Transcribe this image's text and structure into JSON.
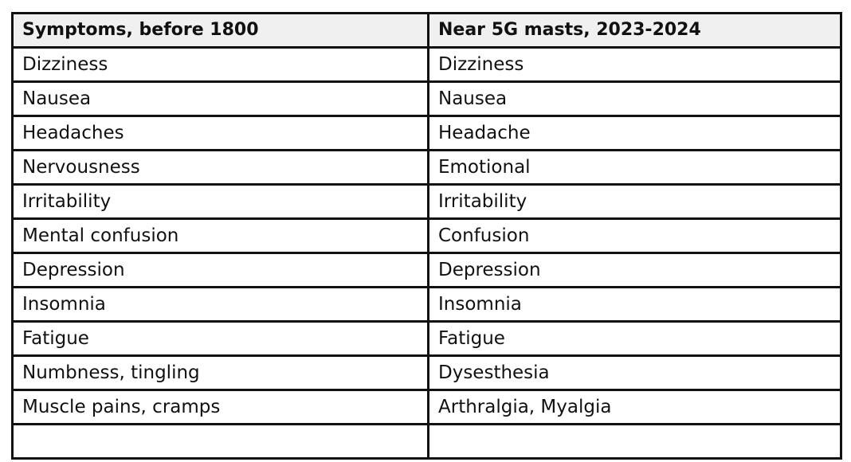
{
  "table": {
    "headers": [
      "Symptoms, before 1800",
      "Near 5G masts, 2023-2024"
    ],
    "rows": [
      [
        "Dizziness",
        "Dizziness"
      ],
      [
        "Nausea",
        "Nausea"
      ],
      [
        "Headaches",
        "Headache"
      ],
      [
        "Nervousness",
        "Emotional"
      ],
      [
        "Irritability",
        "Irritability"
      ],
      [
        "Mental confusion",
        "Confusion"
      ],
      [
        "Depression",
        "Depression"
      ],
      [
        "Insomnia",
        "Insomnia"
      ],
      [
        "Fatigue",
        "Fatigue"
      ],
      [
        "Numbness, tingling",
        "Dysesthesia"
      ],
      [
        "Muscle pains, cramps",
        "Arthralgia, Myalgia"
      ]
    ]
  }
}
